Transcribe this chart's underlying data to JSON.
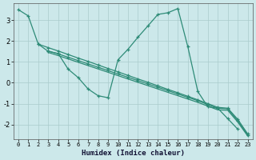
{
  "xlabel": "Humidex (Indice chaleur)",
  "xlim": [
    -0.5,
    23.5
  ],
  "ylim": [
    -2.7,
    3.8
  ],
  "xticks": [
    0,
    1,
    2,
    3,
    4,
    5,
    6,
    7,
    8,
    9,
    10,
    11,
    12,
    13,
    14,
    15,
    16,
    17,
    18,
    19,
    20,
    21,
    22,
    23
  ],
  "yticks": [
    -2,
    -1,
    0,
    1,
    2,
    3
  ],
  "bg_color": "#cce8ea",
  "grid_color": "#aacccc",
  "line_color": "#2e8b77",
  "line1_x": [
    0,
    1,
    2,
    3,
    4,
    5,
    6,
    7,
    8,
    9,
    10,
    11,
    12,
    13,
    14,
    15,
    16,
    17,
    18,
    19,
    20,
    21,
    22
  ],
  "line1_y": [
    3.5,
    3.2,
    1.85,
    1.5,
    1.4,
    0.65,
    0.25,
    -0.3,
    -0.62,
    -0.72,
    1.1,
    1.6,
    2.18,
    2.72,
    3.27,
    3.35,
    3.55,
    1.72,
    -0.42,
    -1.15,
    -1.22,
    -1.72,
    -2.22
  ],
  "line2_x": [
    2,
    3,
    4,
    5,
    6,
    7,
    8,
    9,
    10,
    11,
    12,
    13,
    14,
    15,
    16,
    17,
    18,
    19,
    20,
    21,
    22,
    23
  ],
  "line2_y": [
    1.85,
    1.68,
    1.52,
    1.35,
    1.18,
    1.02,
    0.85,
    0.68,
    0.52,
    0.35,
    0.18,
    0.02,
    -0.15,
    -0.32,
    -0.48,
    -0.65,
    -0.82,
    -1.0,
    -1.18,
    -1.22,
    -1.75,
    -2.45
  ],
  "line3_x": [
    3,
    4,
    5,
    6,
    7,
    8,
    9,
    10,
    11,
    12,
    13,
    14,
    15,
    16,
    17,
    18,
    19,
    20,
    21,
    22,
    23
  ],
  "line3_y": [
    1.52,
    1.38,
    1.22,
    1.06,
    0.9,
    0.74,
    0.58,
    0.42,
    0.26,
    0.1,
    -0.06,
    -0.22,
    -0.38,
    -0.54,
    -0.7,
    -0.86,
    -1.05,
    -1.22,
    -1.25,
    -1.82,
    -2.5
  ],
  "line4_x": [
    3,
    4,
    5,
    6,
    7,
    8,
    9,
    10,
    11,
    12,
    13,
    14,
    15,
    16,
    17,
    18,
    19,
    20,
    21,
    22,
    23
  ],
  "line4_y": [
    1.45,
    1.3,
    1.14,
    0.98,
    0.82,
    0.66,
    0.5,
    0.34,
    0.18,
    0.02,
    -0.14,
    -0.3,
    -0.46,
    -0.62,
    -0.78,
    -0.94,
    -1.12,
    -1.3,
    -1.32,
    -1.88,
    -2.55
  ]
}
